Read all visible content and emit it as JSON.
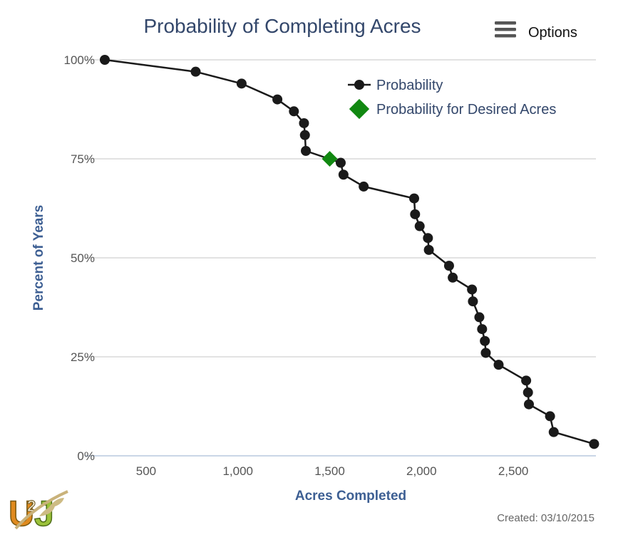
{
  "options_button": {
    "label": "Options",
    "icon": "hamburger-menu-icon"
  },
  "created_label": "Created: 03/10/2015",
  "logo": {
    "text": "U2U"
  },
  "colors": {
    "series": "#1a1a1a",
    "marker": "#1a1a1a",
    "highlight": "#118811",
    "title": "#33476b",
    "axis_title": "#3d5f93",
    "grid": "#d0d0d0"
  },
  "chart_data": {
    "type": "line",
    "title": "Probability of Completing Acres",
    "xlabel": "Acres Completed",
    "ylabel": "Percent of Years",
    "xlim": [
      275,
      2950
    ],
    "ylim": [
      0,
      100
    ],
    "x_ticks": [
      500,
      1000,
      1500,
      2000,
      2500
    ],
    "x_tick_labels": [
      "500",
      "1,000",
      "1,500",
      "2,000",
      "2,500"
    ],
    "y_ticks": [
      0,
      25,
      50,
      75,
      100
    ],
    "y_tick_labels": [
      "0%",
      "25%",
      "50%",
      "75%",
      "100%"
    ],
    "grid": true,
    "legend": "top-right",
    "series": [
      {
        "name": "Probability",
        "marker": "circle",
        "points": [
          [
            275,
            100
          ],
          [
            770,
            97
          ],
          [
            1020,
            94
          ],
          [
            1215,
            90
          ],
          [
            1305,
            87
          ],
          [
            1360,
            84
          ],
          [
            1365,
            81
          ],
          [
            1370,
            77
          ],
          [
            1560,
            74
          ],
          [
            1575,
            71
          ],
          [
            1685,
            68
          ],
          [
            1960,
            65
          ],
          [
            1965,
            61
          ],
          [
            1990,
            58
          ],
          [
            2035,
            55
          ],
          [
            2040,
            52
          ],
          [
            2150,
            48
          ],
          [
            2170,
            45
          ],
          [
            2275,
            42
          ],
          [
            2280,
            39
          ],
          [
            2315,
            35
          ],
          [
            2330,
            32
          ],
          [
            2345,
            29
          ],
          [
            2350,
            26
          ],
          [
            2420,
            23
          ],
          [
            2570,
            19
          ],
          [
            2580,
            16
          ],
          [
            2585,
            13
          ],
          [
            2700,
            10
          ],
          [
            2720,
            6
          ],
          [
            2940,
            3
          ]
        ]
      },
      {
        "name": "Probability for Desired Acres",
        "marker": "diamond",
        "points": [
          [
            1500,
            75
          ]
        ]
      }
    ]
  }
}
